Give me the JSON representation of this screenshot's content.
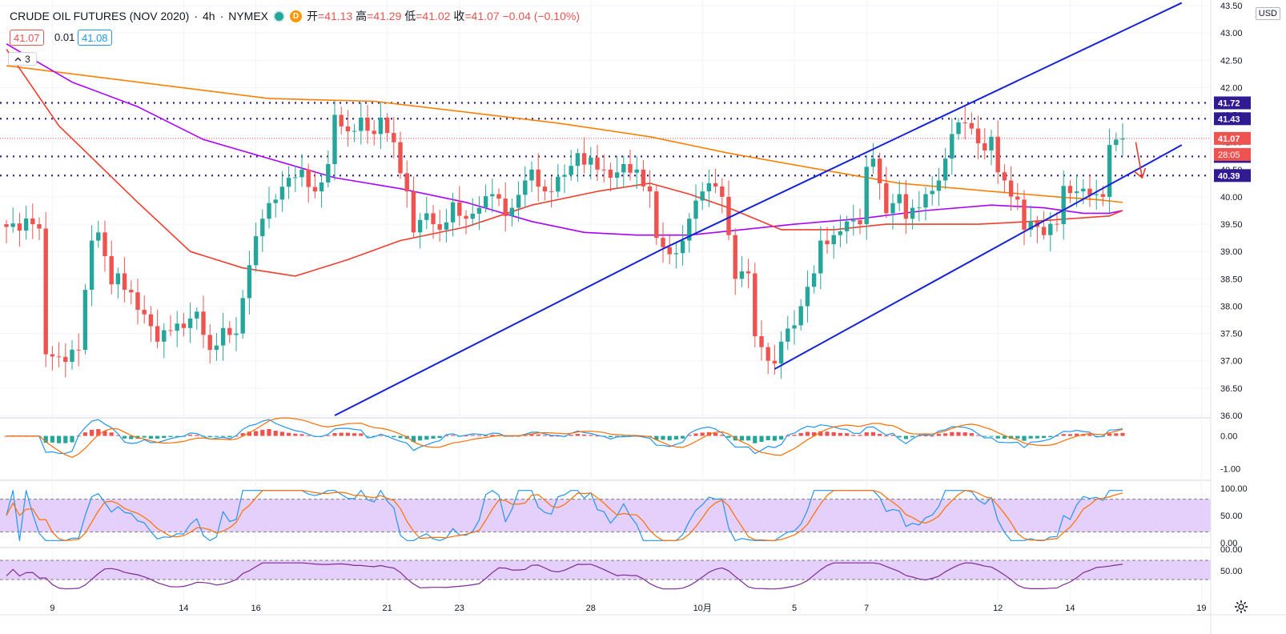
{
  "header": {
    "symbol": "CRUDE OIL FUTURES (NOV 2020)",
    "sep1": "·",
    "interval": "4h",
    "sep2": "·",
    "exchange": "NYMEX",
    "d_badge": "D",
    "open_label": "开",
    "open": "=41.13",
    "high_label": "高",
    "high": "=41.29",
    "low_label": "低",
    "low": "=41.02",
    "close_label": "收",
    "close": "=41.07",
    "change": "−0.04 (−0.10%)",
    "bid": "41.07",
    "spread": "0.01",
    "ask": "41.08",
    "indicators_collapsed": "3",
    "currency": "USD"
  },
  "colors": {
    "up": "#26a69a",
    "down": "#ef5350",
    "ma_red": "#f23d2d",
    "ma_purple": "#aa00ff",
    "ma_orange": "#ff7f00",
    "channel": "#1423d6",
    "level_dots": "#2a1a8a",
    "macd_line": "#2196f3",
    "signal_line": "#ff6d00",
    "osc_band": "#e1c8fb",
    "rsi_line": "#7e2a9a"
  },
  "chart_data": [
    {
      "type": "candlestick",
      "title": "CRUDE OIL FUTURES (NOV 2020)",
      "ylim": [
        36.0,
        43.5
      ],
      "y_ticks": [
        "43.50",
        "43.00",
        "42.50",
        "42.00",
        "41.50",
        "41.00",
        "40.50",
        "40.00",
        "39.50",
        "39.00",
        "38.50",
        "38.00",
        "37.50",
        "37.00",
        "36.50",
        "36.00"
      ],
      "x_ticks": [
        "9",
        "14",
        "16",
        "21",
        "23",
        "28",
        "10月",
        "5",
        "7",
        "12",
        "14",
        "19"
      ],
      "last_price": 41.07,
      "horizontal_levels": [
        41.72,
        41.43,
        40.74,
        40.39
      ],
      "level_labels": [
        "41.72",
        "41.43",
        "40.74",
        "40.39"
      ],
      "last_price_label": "41.07",
      "countdown_label": "28:05",
      "close_anchors": [
        [
          0,
          39.45
        ],
        [
          4,
          39.5
        ],
        [
          5,
          39.42
        ],
        [
          6,
          37.12
        ],
        [
          9,
          36.98
        ],
        [
          11,
          37.2
        ],
        [
          13,
          39.2
        ],
        [
          14,
          39.35
        ],
        [
          16,
          38.4
        ],
        [
          17,
          38.6
        ],
        [
          18,
          38.3
        ],
        [
          21,
          37.85
        ],
        [
          23,
          37.35
        ],
        [
          25,
          37.55
        ],
        [
          27,
          37.6
        ],
        [
          29,
          37.9
        ],
        [
          31,
          37.2
        ],
        [
          33,
          37.6
        ],
        [
          35,
          37.5
        ],
        [
          37,
          38.75
        ],
        [
          39,
          39.6
        ],
        [
          41,
          39.95
        ],
        [
          43,
          40.35
        ],
        [
          45,
          40.5
        ],
        [
          47,
          40.1
        ],
        [
          49,
          40.6
        ],
        [
          50,
          41.5
        ],
        [
          52,
          41.2
        ],
        [
          54,
          41.45
        ],
        [
          56,
          41.15
        ],
        [
          57,
          41.45
        ],
        [
          59,
          41.0
        ],
        [
          61,
          40.1
        ],
        [
          62,
          39.35
        ],
        [
          64,
          39.7
        ],
        [
          66,
          39.4
        ],
        [
          68,
          39.9
        ],
        [
          70,
          39.6
        ],
        [
          72,
          39.8
        ],
        [
          74,
          40.05
        ],
        [
          76,
          39.65
        ],
        [
          77,
          39.8
        ],
        [
          79,
          40.3
        ],
        [
          80,
          40.5
        ],
        [
          82,
          40.1
        ],
        [
          85,
          40.4
        ],
        [
          87,
          40.8
        ],
        [
          90,
          40.5
        ],
        [
          92,
          40.35
        ],
        [
          94,
          40.6
        ],
        [
          96,
          40.5
        ],
        [
          98,
          40.1
        ],
        [
          99,
          39.25
        ],
        [
          101,
          38.95
        ],
        [
          103,
          39.2
        ],
        [
          104,
          39.6
        ],
        [
          106,
          40.1
        ],
        [
          107,
          40.25
        ],
        [
          109,
          40.0
        ],
        [
          110,
          39.3
        ],
        [
          111,
          38.5
        ],
        [
          113,
          38.6
        ],
        [
          114,
          37.45
        ],
        [
          115,
          37.25
        ],
        [
          117,
          36.95
        ],
        [
          118,
          37.35
        ],
        [
          120,
          37.65
        ],
        [
          121,
          38.0
        ],
        [
          123,
          38.6
        ],
        [
          124,
          39.2
        ],
        [
          126,
          39.3
        ],
        [
          128,
          39.55
        ],
        [
          130,
          39.5
        ],
        [
          131,
          40.55
        ],
        [
          132,
          40.7
        ],
        [
          133,
          40.25
        ],
        [
          134,
          39.7
        ],
        [
          136,
          40.05
        ],
        [
          137,
          39.6
        ],
        [
          138,
          39.8
        ],
        [
          140,
          40.05
        ],
        [
          142,
          40.3
        ],
        [
          143,
          40.7
        ],
        [
          144,
          41.15
        ],
        [
          146,
          41.35
        ],
        [
          147,
          41.25
        ],
        [
          149,
          40.85
        ],
        [
          150,
          41.1
        ],
        [
          151,
          40.45
        ],
        [
          152,
          40.3
        ],
        [
          154,
          39.95
        ],
        [
          155,
          39.4
        ],
        [
          156,
          39.55
        ],
        [
          158,
          39.3
        ],
        [
          160,
          39.5
        ],
        [
          161,
          40.2
        ],
        [
          163,
          40.1
        ],
        [
          164,
          40.15
        ],
        [
          166,
          40.05
        ],
        [
          167,
          40.0
        ],
        [
          168,
          40.95
        ],
        [
          169,
          41.05
        ],
        [
          170,
          41.07
        ]
      ],
      "ma_red": [
        [
          0,
          42.7
        ],
        [
          8,
          41.3
        ],
        [
          20,
          39.9
        ],
        [
          28,
          39.0
        ],
        [
          36,
          38.7
        ],
        [
          44,
          38.55
        ],
        [
          52,
          38.85
        ],
        [
          60,
          39.2
        ],
        [
          70,
          39.45
        ],
        [
          80,
          39.85
        ],
        [
          90,
          40.1
        ],
        [
          98,
          40.25
        ],
        [
          104,
          40.05
        ],
        [
          110,
          39.8
        ],
        [
          118,
          39.4
        ],
        [
          126,
          39.4
        ],
        [
          134,
          39.5
        ],
        [
          140,
          39.5
        ],
        [
          148,
          39.5
        ],
        [
          156,
          39.55
        ],
        [
          162,
          39.6
        ],
        [
          168,
          39.65
        ],
        [
          170,
          39.75
        ]
      ],
      "ma_purple": [
        [
          0,
          42.8
        ],
        [
          10,
          42.1
        ],
        [
          20,
          41.65
        ],
        [
          30,
          41.05
        ],
        [
          40,
          40.7
        ],
        [
          50,
          40.35
        ],
        [
          60,
          40.15
        ],
        [
          70,
          39.9
        ],
        [
          80,
          39.55
        ],
        [
          88,
          39.35
        ],
        [
          96,
          39.3
        ],
        [
          104,
          39.3
        ],
        [
          112,
          39.4
        ],
        [
          120,
          39.5
        ],
        [
          130,
          39.6
        ],
        [
          140,
          39.75
        ],
        [
          150,
          39.85
        ],
        [
          158,
          39.8
        ],
        [
          164,
          39.7
        ],
        [
          168,
          39.7
        ],
        [
          170,
          39.75
        ]
      ],
      "ma_orange": [
        [
          0,
          42.4
        ],
        [
          20,
          42.1
        ],
        [
          40,
          41.8
        ],
        [
          56,
          41.75
        ],
        [
          70,
          41.55
        ],
        [
          84,
          41.35
        ],
        [
          98,
          41.1
        ],
        [
          110,
          40.8
        ],
        [
          124,
          40.5
        ],
        [
          136,
          40.25
        ],
        [
          150,
          40.1
        ],
        [
          160,
          40.0
        ],
        [
          166,
          39.95
        ],
        [
          170,
          39.9
        ]
      ],
      "channel_upper": [
        [
          100,
          39.05
        ],
        [
          179,
          43.55
        ]
      ],
      "channel_lower": [
        [
          117,
          36.85
        ],
        [
          179,
          40.95
        ]
      ],
      "channel_left_segment": [
        [
          50,
          36.0
        ],
        [
          100,
          39.05
        ]
      ],
      "arrow_note": "red downward arrow pointing toward lower channel line"
    },
    {
      "type": "histogram+line",
      "name": "MACD pane",
      "ylim": [
        -1.3,
        0.5
      ],
      "y_ticks": [
        "0.00",
        "-1.00"
      ]
    },
    {
      "type": "line",
      "name": "Stochastic pane",
      "ylim": [
        0,
        100
      ],
      "y_ticks": [
        "100.00",
        "50.00",
        "0.00"
      ],
      "band": [
        20,
        80
      ]
    },
    {
      "type": "line",
      "name": "RSI pane",
      "y_ticks": [
        "00.00",
        "50.00"
      ]
    }
  ]
}
